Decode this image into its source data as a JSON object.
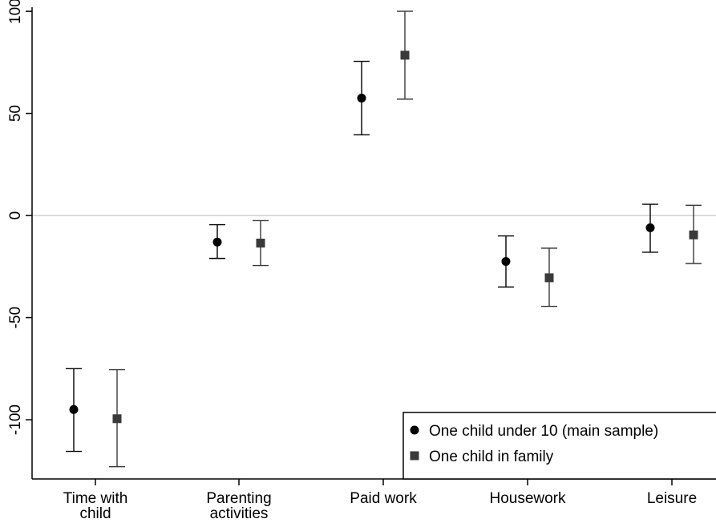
{
  "chart_data": {
    "type": "scatter",
    "subtype": "point-estimates-with-confidence-intervals",
    "categories": [
      "Time with\nchild",
      "Parenting\nactivities",
      "Paid work",
      "Housework",
      "Leisure"
    ],
    "ylim": [
      -129,
      102
    ],
    "yticks": [
      -100,
      -50,
      0,
      50,
      100
    ],
    "ytick_labels": [
      "-100",
      "-50",
      "0",
      "50",
      "100"
    ],
    "zero_line": true,
    "grid": false,
    "legend_position": "bottom-right",
    "series": [
      {
        "name": "One child under 10 (main sample)",
        "marker": "circle",
        "color": "#000000",
        "values": [
          -95,
          -13,
          57.5,
          -22.5,
          -6
        ],
        "ci_low": [
          -115.5,
          -21,
          39.5,
          -35,
          -18
        ],
        "ci_high": [
          -75,
          -4.5,
          75.5,
          -10,
          5.5
        ]
      },
      {
        "name": "One child in family",
        "marker": "square",
        "color": "#3a3a3a",
        "values": [
          -99.5,
          -13.5,
          78.5,
          -30.5,
          -9.5
        ],
        "ci_low": [
          -123,
          -24.5,
          57,
          -44.5,
          -23.5
        ],
        "ci_high": [
          -75.5,
          -2.5,
          100,
          -16,
          5
        ]
      }
    ]
  },
  "colors": {
    "axis": "#000000",
    "zero_line": "#d0d0d0",
    "ci_series_1": "#000000",
    "ci_series_2": "#3a3a3a"
  }
}
